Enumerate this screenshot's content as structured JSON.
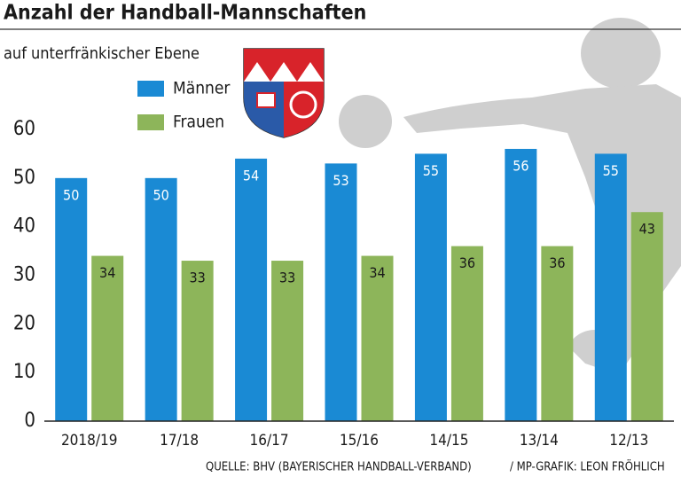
{
  "chart_data": {
    "type": "bar",
    "title": "Anzahl der Handball-Mannschaften",
    "subtitle": "auf unterfränkischer Ebene",
    "categories": [
      "2018/19",
      "17/18",
      "16/17",
      "15/16",
      "14/15",
      "13/14",
      "12/13"
    ],
    "series": [
      {
        "name": "Männer",
        "color": "#1a8ad4",
        "values": [
          50,
          50,
          54,
          53,
          55,
          56,
          55
        ]
      },
      {
        "name": "Frauen",
        "color": "#8db55a",
        "values": [
          34,
          33,
          33,
          34,
          36,
          36,
          43
        ]
      }
    ],
    "ylim": [
      0,
      60
    ],
    "yticks": [
      0,
      10,
      20,
      30,
      40,
      50,
      60
    ],
    "grid": false,
    "source": "QUELLE: BHV (BAYERISCHER HANDBALL-VERBAND)",
    "credit": "/ MP-GRAFIK: LEON FRÖHLICH"
  }
}
